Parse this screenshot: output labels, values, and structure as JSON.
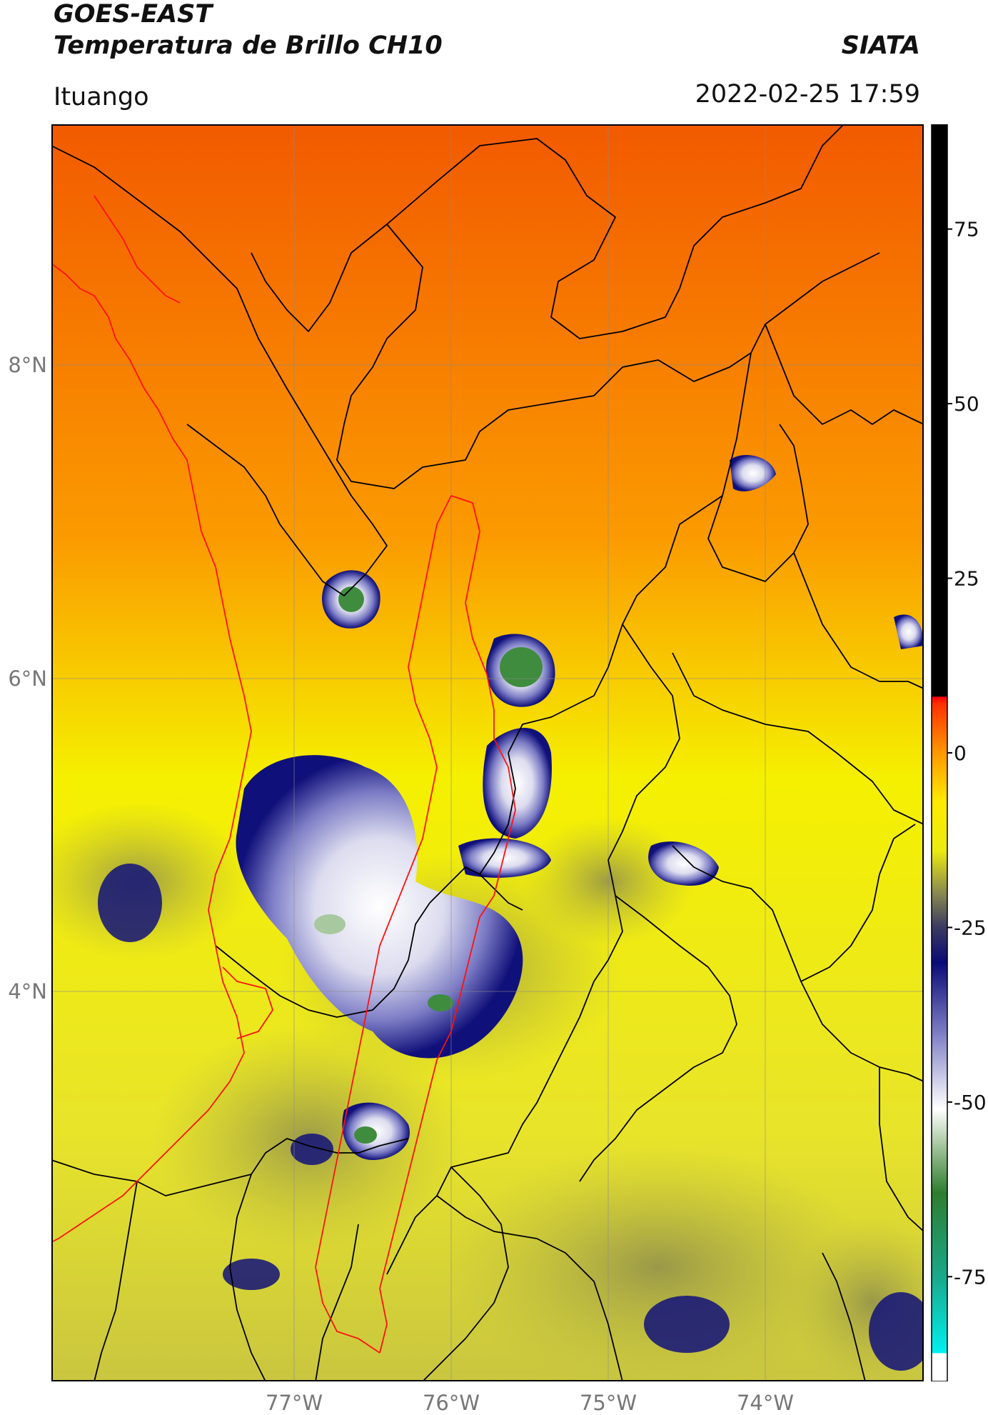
{
  "header": {
    "satellite": "GOES-EAST",
    "product": "Temperatura de Brillo CH10",
    "brand": "SIATA",
    "location": "Ituango",
    "timestamp": "2022-02-25 17:59"
  },
  "map": {
    "lon_ticks": [
      "77°W",
      "76°W",
      "75°W",
      "74°W"
    ],
    "lat_ticks": [
      "8°N",
      "6°N",
      "4°N"
    ],
    "colors": {
      "warm": "#f25a00",
      "orange": "#fb9b00",
      "yellow": "#f5f000",
      "olive": "#b9b843",
      "navy": "#10107a",
      "lavender": "#b8b8de",
      "white": "#f4f4f8",
      "green": "#3f8c3f",
      "border_black": "#000000",
      "border_red": "#ff1111"
    }
  },
  "colorbar": {
    "ticks": [
      {
        "label": "75",
        "value": 75
      },
      {
        "label": "50",
        "value": 50
      },
      {
        "label": "25",
        "value": 25
      },
      {
        "label": "0",
        "value": 0
      },
      {
        "label": "-25",
        "value": -25
      },
      {
        "label": "-50",
        "value": -50
      },
      {
        "label": "-75",
        "value": -75
      }
    ],
    "range": [
      -90,
      90
    ],
    "stops": [
      {
        "value": -90,
        "color": "#ffffff"
      },
      {
        "value": -86,
        "color": "#ffffff"
      },
      {
        "value": -85.9,
        "color": "#00f0f0"
      },
      {
        "value": -75,
        "color": "#1aa88a"
      },
      {
        "value": -63,
        "color": "#2e7d2e"
      },
      {
        "value": -56,
        "color": "#a8c8a0"
      },
      {
        "value": -51,
        "color": "#ffffff"
      },
      {
        "value": -40,
        "color": "#7c7cc4"
      },
      {
        "value": -30,
        "color": "#0a0a78"
      },
      {
        "value": -25,
        "color": "#3a3a60"
      },
      {
        "value": -20,
        "color": "#8a8a50"
      },
      {
        "value": -14,
        "color": "#ebeb10"
      },
      {
        "value": -7,
        "color": "#ffea00"
      },
      {
        "value": 0,
        "color": "#ff9800"
      },
      {
        "value": 7,
        "color": "#ff3000"
      },
      {
        "value": 8,
        "color": "#ff0000"
      },
      {
        "value": 8.1,
        "color": "#000000"
      },
      {
        "value": 90,
        "color": "#000000"
      }
    ]
  }
}
